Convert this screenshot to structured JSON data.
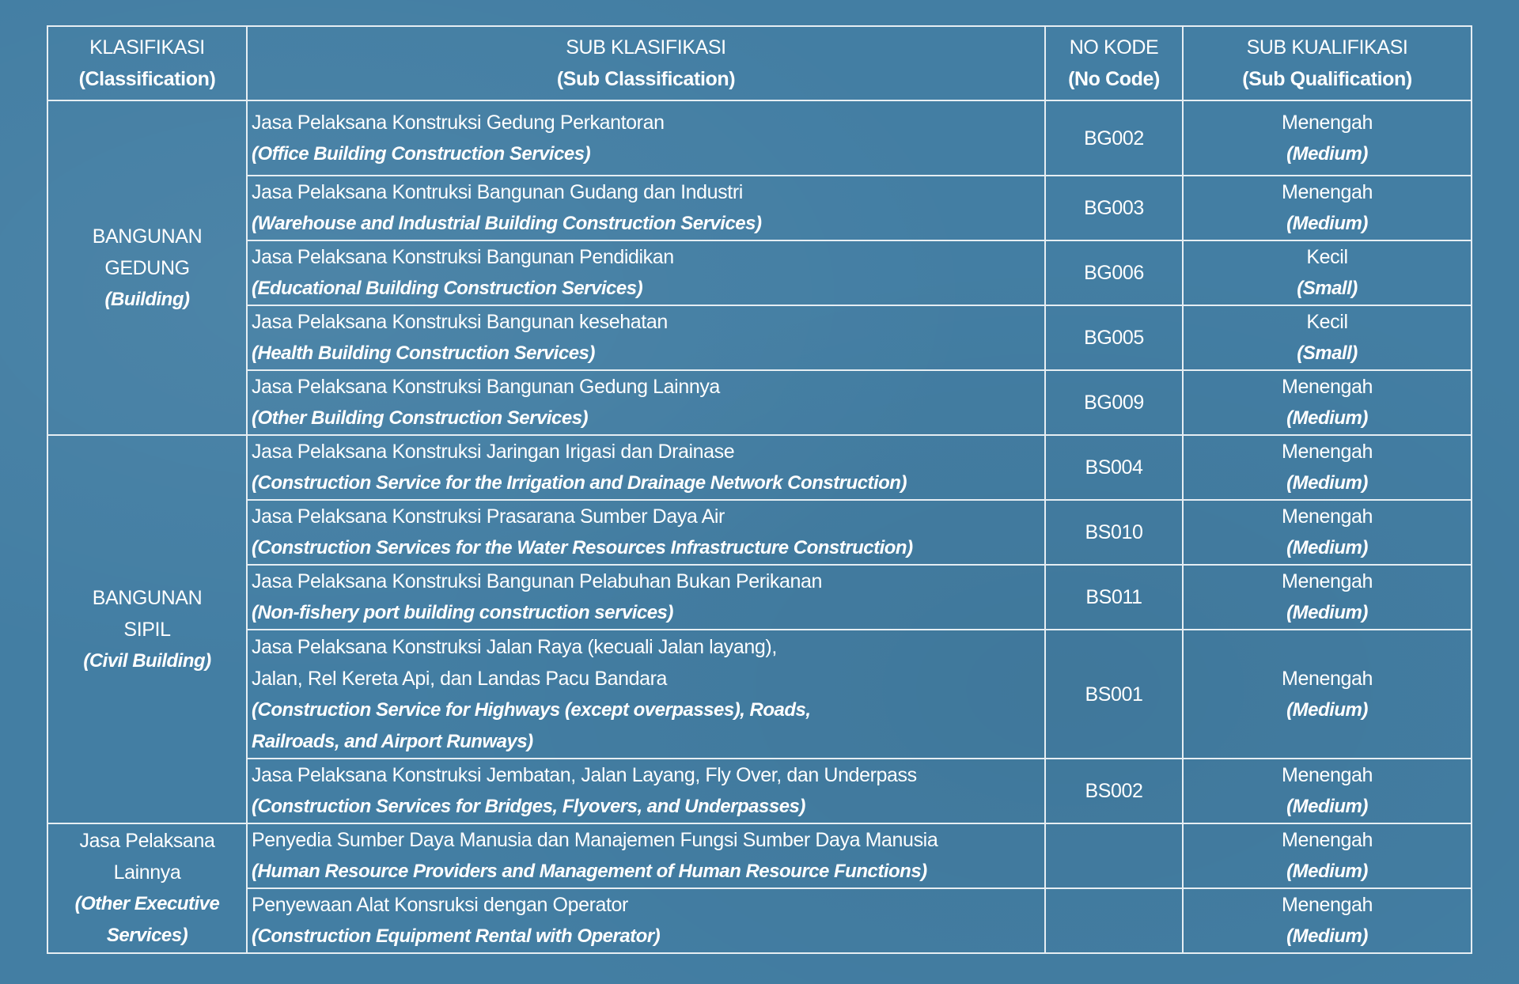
{
  "header": {
    "classification": [
      "KLASIFIKASI",
      "(Classification)"
    ],
    "sub_classification": [
      "SUB KLASIFIKASI",
      "(Sub Classification)"
    ],
    "code": [
      "NO KODE",
      "(No Code)"
    ],
    "sub_qualification": [
      "SUB KUALIFIKASI",
      "(Sub Qualification)"
    ]
  },
  "groups": [
    {
      "name": [
        "BANGUNAN",
        "GEDUNG"
      ],
      "en": "(Building)"
    },
    {
      "name": [
        "BANGUNAN",
        "SIPIL"
      ],
      "en": "(Civil Building)"
    },
    {
      "name": [
        "Jasa Pelaksana",
        "Lainnya"
      ],
      "en": [
        "(Other Executive",
        "Services)"
      ]
    }
  ],
  "rows": [
    {
      "id": [
        "Jasa Pelaksana Konstruksi Gedung Perkantoran"
      ],
      "en": [
        "(Office Building Construction Services)"
      ],
      "code": "BG002",
      "qual": "Menengah",
      "qual_en": "(Medium)"
    },
    {
      "id": [
        "Jasa Pelaksana Kontruksi Bangunan Gudang dan Industri"
      ],
      "en": [
        "(Warehouse and Industrial Building Construction Services)"
      ],
      "code": "BG003",
      "qual": "Menengah",
      "qual_en": "(Medium)"
    },
    {
      "id": [
        "Jasa Pelaksana Konstruksi Bangunan Pendidikan"
      ],
      "en": [
        "(Educational Building Construction Services)"
      ],
      "code": "BG006",
      "qual": "Kecil",
      "qual_en": "(Small)"
    },
    {
      "id": [
        "Jasa Pelaksana Konstruksi Bangunan kesehatan"
      ],
      "en": [
        "(Health Building Construction Services)"
      ],
      "code": "BG005",
      "qual": "Kecil",
      "qual_en": "(Small)"
    },
    {
      "id": [
        "Jasa Pelaksana Konstruksi Bangunan Gedung Lainnya"
      ],
      "en": [
        "(Other Building Construction Services)"
      ],
      "code": "BG009",
      "qual": "Menengah",
      "qual_en": "(Medium)"
    },
    {
      "id": [
        "Jasa Pelaksana Konstruksi Jaringan Irigasi dan Drainase"
      ],
      "en": [
        "(Construction Service for the Irrigation and Drainage Network Construction)"
      ],
      "code": "BS004",
      "qual": "Menengah",
      "qual_en": "(Medium)"
    },
    {
      "id": [
        "Jasa Pelaksana Konstruksi Prasarana Sumber Daya Air"
      ],
      "en": [
        "(Construction Services for the Water Resources Infrastructure Construction)"
      ],
      "code": "BS010",
      "qual": "Menengah",
      "qual_en": "(Medium)"
    },
    {
      "id": [
        "Jasa Pelaksana Konstruksi Bangunan Pelabuhan Bukan Perikanan"
      ],
      "en": [
        "(Non-fishery port building construction services)"
      ],
      "code": "BS011",
      "qual": "Menengah",
      "qual_en": "(Medium)"
    },
    {
      "id": [
        "Jasa Pelaksana Konstruksi Jalan Raya (kecuali Jalan layang),",
        "Jalan, Rel Kereta Api, dan Landas Pacu Bandara"
      ],
      "en": [
        "(Construction Service for Highways (except overpasses), Roads,",
        "Railroads, and Airport Runways)"
      ],
      "code": "BS001",
      "qual": "Menengah",
      "qual_en": "(Medium)"
    },
    {
      "id": [
        "Jasa Pelaksana Konstruksi Jembatan, Jalan Layang, Fly Over, dan Underpass"
      ],
      "en": [
        "(Construction Services for Bridges, Flyovers, and Underpasses)"
      ],
      "code": "BS002",
      "qual": "Menengah",
      "qual_en": "(Medium)"
    },
    {
      "id": [
        "Penyedia Sumber Daya Manusia dan Manajemen Fungsi Sumber Daya Manusia"
      ],
      "en": [
        "(Human Resource Providers and Management of Human Resource Functions)"
      ],
      "code": "",
      "qual": "Menengah",
      "qual_en": "(Medium)"
    },
    {
      "id": [
        "Penyewaan Alat Konsruksi dengan Operator"
      ],
      "en": [
        "(Construction Equipment Rental with Operator)"
      ],
      "code": "",
      "qual": "Menengah",
      "qual_en": "(Medium)"
    }
  ],
  "colors": {
    "background": "#437ea3",
    "border": "#e6eef3",
    "text": "#ffffff"
  }
}
